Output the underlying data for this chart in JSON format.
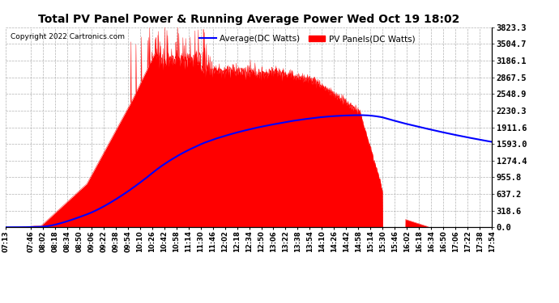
{
  "title": "Total PV Panel Power & Running Average Power Wed Oct 19 18:02",
  "copyright": "Copyright 2022 Cartronics.com",
  "ylabel_right_values": [
    3823.3,
    3504.7,
    3186.1,
    2867.5,
    2548.9,
    2230.3,
    1911.6,
    1593.0,
    1274.4,
    955.8,
    637.2,
    318.6,
    0.0
  ],
  "ymax": 3823.3,
  "ymin": 0.0,
  "legend_average_label": "Average(DC Watts)",
  "legend_pv_label": "PV Panels(DC Watts)",
  "panel_color": "#ff0000",
  "average_color": "#0000ff",
  "background_color": "#ffffff",
  "grid_color": "#aaaaaa",
  "x_tick_labels": [
    "07:13",
    "07:46",
    "08:02",
    "08:18",
    "08:34",
    "08:50",
    "09:06",
    "09:22",
    "09:38",
    "09:54",
    "10:10",
    "10:26",
    "10:42",
    "10:58",
    "11:14",
    "11:30",
    "11:46",
    "12:02",
    "12:18",
    "12:34",
    "12:50",
    "13:06",
    "13:22",
    "13:38",
    "13:54",
    "14:10",
    "14:26",
    "14:42",
    "14:58",
    "15:14",
    "15:30",
    "15:46",
    "16:02",
    "16:18",
    "16:34",
    "16:50",
    "17:06",
    "17:22",
    "17:38",
    "17:54"
  ]
}
